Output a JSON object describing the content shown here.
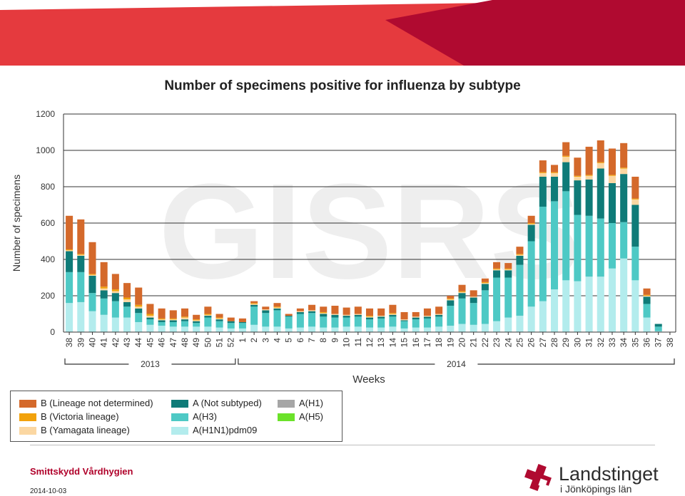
{
  "colors": {
    "banner_light": "#e53a3e",
    "banner_dark": "#b00a30",
    "B_lineage_not_determined": "#d4692b",
    "B_victoria": "#f2a20c",
    "B_yamagata": "#fbd7a2",
    "A_not_subtyped": "#0f7b78",
    "A_H3": "#4ec9c5",
    "A_H1N1pdm09": "#b3eced",
    "A_H1": "#a6a6a6",
    "A_H5": "#6be22a",
    "logo_red": "#b00a30"
  },
  "chart_data": {
    "type": "bar",
    "stacked": true,
    "title": "Number of specimens positive for influenza by subtype",
    "xlabel": "Weeks",
    "ylabel": "Number of specimens",
    "ylim": [
      0,
      1200
    ],
    "yticks": [
      0,
      200,
      400,
      600,
      800,
      1000,
      1200
    ],
    "grid": true,
    "legend_position": "bottom",
    "watermark": "GISRS",
    "categories": [
      "38",
      "39",
      "40",
      "41",
      "42",
      "43",
      "44",
      "45",
      "46",
      "47",
      "48",
      "49",
      "50",
      "51",
      "52",
      "1",
      "2",
      "3",
      "4",
      "5",
      "6",
      "7",
      "8",
      "9",
      "10",
      "11",
      "12",
      "13",
      "14",
      "15",
      "16",
      "17",
      "18",
      "19",
      "20",
      "21",
      "22",
      "23",
      "24",
      "25",
      "26",
      "27",
      "28",
      "29",
      "30",
      "31",
      "32",
      "33",
      "34",
      "35",
      "36",
      "37",
      "38"
    ],
    "year_groups": [
      {
        "label": "2013",
        "from": "38",
        "to": "52"
      },
      {
        "label": "2014",
        "from": "1",
        "to": "38"
      }
    ],
    "series": [
      {
        "name": "A(H1N1)pdm09",
        "color": "#b3eced",
        "values": [
          160,
          165,
          115,
          95,
          80,
          80,
          55,
          40,
          35,
          30,
          30,
          30,
          30,
          25,
          20,
          20,
          40,
          30,
          30,
          20,
          25,
          30,
          25,
          25,
          30,
          30,
          25,
          25,
          30,
          20,
          25,
          25,
          30,
          35,
          45,
          40,
          45,
          60,
          80,
          90,
          140,
          170,
          235,
          285,
          280,
          305,
          305,
          350,
          405,
          285,
          80,
          5,
          0
        ]
      },
      {
        "name": "A(H3)",
        "color": "#4ec9c5",
        "values": [
          170,
          165,
          100,
          90,
          90,
          60,
          50,
          30,
          20,
          25,
          30,
          20,
          50,
          35,
          30,
          30,
          100,
          75,
          90,
          65,
          75,
          75,
          60,
          55,
          50,
          55,
          45,
          50,
          55,
          40,
          45,
          50,
          55,
          110,
          140,
          120,
          185,
          240,
          220,
          280,
          360,
          520,
          485,
          490,
          365,
          335,
          320,
          250,
          200,
          185,
          75,
          25,
          0
        ]
      },
      {
        "name": "A(Not subtyped)",
        "color": "#0f7b78",
        "values": [
          115,
          90,
          95,
          45,
          45,
          25,
          25,
          10,
          10,
          10,
          10,
          10,
          10,
          10,
          10,
          5,
          10,
          15,
          10,
          5,
          10,
          10,
          15,
          15,
          10,
          10,
          10,
          10,
          10,
          5,
          10,
          10,
          10,
          30,
          30,
          30,
          35,
          40,
          40,
          50,
          90,
          165,
          135,
          160,
          190,
          200,
          275,
          220,
          265,
          230,
          40,
          15,
          0
        ]
      },
      {
        "name": "A(H1)",
        "color": "#a6a6a6",
        "values": [
          0,
          0,
          0,
          0,
          0,
          0,
          0,
          0,
          0,
          0,
          0,
          0,
          0,
          0,
          0,
          0,
          0,
          0,
          0,
          0,
          0,
          0,
          0,
          0,
          0,
          0,
          0,
          0,
          0,
          0,
          0,
          0,
          0,
          0,
          0,
          0,
          0,
          0,
          0,
          0,
          0,
          0,
          0,
          0,
          0,
          0,
          0,
          0,
          0,
          0,
          0,
          0,
          0
        ]
      },
      {
        "name": "A(H5)",
        "color": "#6be22a",
        "values": [
          0,
          0,
          0,
          0,
          0,
          0,
          0,
          0,
          0,
          0,
          0,
          0,
          0,
          0,
          0,
          0,
          0,
          0,
          0,
          0,
          0,
          0,
          0,
          0,
          0,
          0,
          0,
          0,
          0,
          0,
          0,
          0,
          0,
          0,
          0,
          0,
          0,
          0,
          0,
          0,
          0,
          0,
          0,
          0,
          0,
          0,
          0,
          0,
          0,
          0,
          0,
          0,
          0
        ]
      },
      {
        "name": "B (Yamagata lineage)",
        "color": "#fbd7a2",
        "values": [
          5,
          5,
          5,
          10,
          10,
          15,
          10,
          10,
          5,
          5,
          10,
          5,
          5,
          5,
          0,
          0,
          5,
          5,
          5,
          0,
          5,
          5,
          5,
          5,
          5,
          5,
          5,
          5,
          5,
          5,
          5,
          5,
          5,
          5,
          5,
          5,
          5,
          5,
          5,
          5,
          5,
          20,
          20,
          30,
          20,
          20,
          30,
          40,
          30,
          30,
          5,
          0,
          0
        ]
      },
      {
        "name": "B (Victoria lineage)",
        "color": "#f2a20c",
        "values": [
          5,
          5,
          5,
          10,
          10,
          10,
          10,
          10,
          5,
          5,
          5,
          5,
          5,
          5,
          0,
          0,
          5,
          0,
          5,
          0,
          0,
          0,
          5,
          0,
          0,
          0,
          5,
          0,
          5,
          0,
          0,
          0,
          0,
          5,
          5,
          0,
          5,
          5,
          5,
          5,
          5,
          5,
          5,
          5,
          5,
          5,
          5,
          5,
          5,
          5,
          5,
          0,
          0
        ]
      },
      {
        "name": "B (Lineage not determined)",
        "color": "#d4692b",
        "values": [
          185,
          190,
          175,
          135,
          85,
          80,
          95,
          55,
          55,
          45,
          45,
          25,
          40,
          20,
          20,
          20,
          10,
          15,
          20,
          10,
          15,
          30,
          30,
          45,
          40,
          40,
          40,
          40,
          45,
          40,
          25,
          40,
          40,
          15,
          35,
          35,
          20,
          35,
          30,
          40,
          40,
          65,
          40,
          75,
          100,
          155,
          120,
          145,
          135,
          120,
          35,
          0,
          0
        ]
      }
    ]
  },
  "legend_items": [
    {
      "label": "B (Lineage not determined)",
      "color": "#d4692b"
    },
    {
      "label": "B (Victoria lineage)",
      "color": "#f2a20c"
    },
    {
      "label": "B (Yamagata lineage)",
      "color": "#fbd7a2"
    },
    {
      "label": "A (Not subtyped)",
      "color": "#0f7b78"
    },
    {
      "label": "A(H3)",
      "color": "#4ec9c5"
    },
    {
      "label": "A(H1N1)pdm09",
      "color": "#b3eced"
    },
    {
      "label": "A(H1)",
      "color": "#a6a6a6"
    },
    {
      "label": "A(H5)",
      "color": "#6be22a"
    }
  ],
  "footer": {
    "organization": "Smittskydd Vårdhygien",
    "date": "2014-10-03",
    "logo_name": "Landstinget",
    "logo_sub": "i Jönköpings län"
  }
}
